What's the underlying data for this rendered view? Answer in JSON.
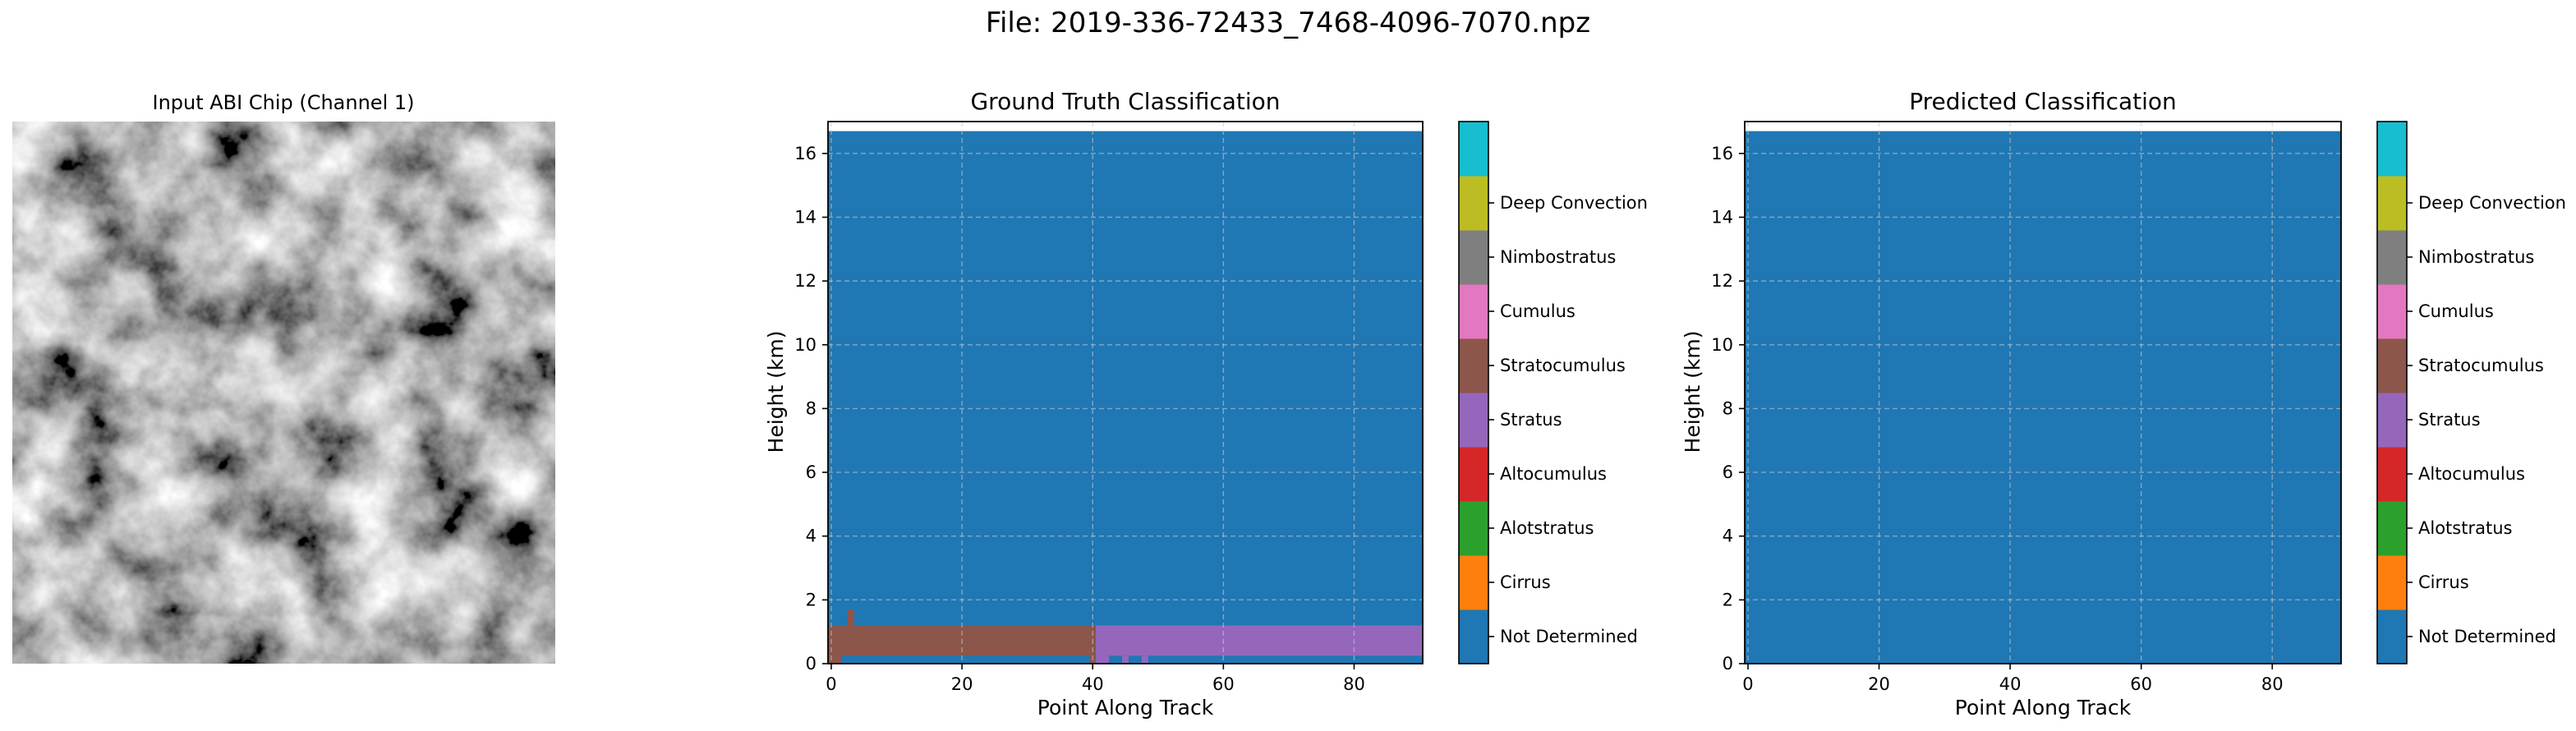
{
  "figure": {
    "suptitle": "File: 2019-336-72433_7468-4096-7070.npz"
  },
  "input_panel": {
    "title": "Input ABI Chip (Channel 1)"
  },
  "classes": [
    "Not Determined",
    "Cirrus",
    "Alotstratus",
    "Altocumulus",
    "Stratus",
    "Stratocumulus",
    "Cumulus",
    "Nimbostratus",
    "Deep Convection"
  ],
  "class_colors": [
    "#1f77b4",
    "#ff7f0e",
    "#2ca02c",
    "#d62728",
    "#9467bd",
    "#8c564b",
    "#e377c2",
    "#7f7f7f",
    "#bcbd22",
    "#17becf"
  ],
  "chart_data": [
    {
      "type": "heatmap",
      "title": "Ground Truth Classification",
      "xlabel": "Point Along Track",
      "ylabel": "Height (km)",
      "xlim": [
        -0.5,
        90.5
      ],
      "ylim": [
        0,
        17
      ],
      "xticks": [
        0,
        20,
        40,
        60,
        80
      ],
      "yticks": [
        0,
        2,
        4,
        6,
        8,
        10,
        12,
        14,
        16
      ],
      "grid": true,
      "background_class": "Not Determined",
      "data_top_km": 16.7,
      "regions": [
        {
          "class": "Stratocumulus",
          "x0": -0.5,
          "x1": 40.5,
          "y0": 0.0,
          "y1": 1.2
        },
        {
          "class": "Stratocumulus",
          "x0": 2.5,
          "x1": 3.5,
          "y0": 1.2,
          "y1": 1.7
        },
        {
          "class": "Stratus",
          "x0": 40.5,
          "x1": 90.5,
          "y0": 0.0,
          "y1": 1.2
        },
        {
          "class": "Not Determined",
          "x0": 1.5,
          "x1": 39.5,
          "y0": 0.0,
          "y1": 0.25
        },
        {
          "class": "Not Determined",
          "x0": 42.5,
          "x1": 90.5,
          "y0": 0.0,
          "y1": 0.25
        },
        {
          "class": "Stratus",
          "x0": 44.5,
          "x1": 45.5,
          "y0": 0.0,
          "y1": 0.25
        },
        {
          "class": "Stratus",
          "x0": 47.5,
          "x1": 48.5,
          "y0": 0.0,
          "y1": 0.25
        }
      ],
      "colorbar_labels": [
        "Not Determined",
        "Cirrus",
        "Alotstratus",
        "Altocumulus",
        "Stratus",
        "Stratocumulus",
        "Cumulus",
        "Nimbostratus",
        "Deep Convection"
      ]
    },
    {
      "type": "heatmap",
      "title": "Predicted Classification",
      "xlabel": "Point Along Track",
      "ylabel": "Height (km)",
      "xlim": [
        -0.5,
        90.5
      ],
      "ylim": [
        0,
        17
      ],
      "xticks": [
        0,
        20,
        40,
        60,
        80
      ],
      "yticks": [
        0,
        2,
        4,
        6,
        8,
        10,
        12,
        14,
        16
      ],
      "grid": true,
      "background_class": "Not Determined",
      "data_top_km": 16.7,
      "regions": [],
      "colorbar_labels": [
        "Not Determined",
        "Cirrus",
        "Alotstratus",
        "Altocumulus",
        "Stratus",
        "Stratocumulus",
        "Cumulus",
        "Nimbostratus",
        "Deep Convection"
      ]
    }
  ]
}
